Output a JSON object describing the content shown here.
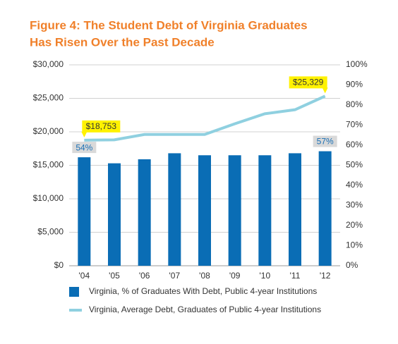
{
  "chart_data": {
    "type": "bar-line",
    "title": [
      "Figure 4: The Student Debt of Virginia Graduates",
      "Has Risen Over the Past Decade"
    ],
    "categories": [
      "'04",
      "'05",
      "'06",
      "'07",
      "'08",
      "'09",
      "'10",
      "'11",
      "'12"
    ],
    "series": [
      {
        "name": "Virginia, % of Graduates With Debt, Public 4-year Institutions",
        "type": "bar",
        "axis": "y2",
        "color": "#0a6db5",
        "values": [
          54,
          51,
          53,
          56,
          55,
          55,
          55,
          56,
          57
        ],
        "value_labels": [
          "54%",
          null,
          null,
          null,
          null,
          null,
          null,
          null,
          "57%"
        ]
      },
      {
        "name": "Virginia, Average Debt, Graduates of Public 4-year Institutions",
        "type": "line",
        "color": "#8fd0e0",
        "values": [
          18753,
          18800,
          19600,
          19600,
          19600,
          21200,
          22700,
          23300,
          25329
        ],
        "value_labels": [
          "$18,753",
          null,
          null,
          null,
          null,
          null,
          null,
          null,
          "$25,329"
        ]
      }
    ],
    "ylim": [
      0,
      30000
    ],
    "yticks": [
      {
        "value": 0,
        "label": "$0"
      },
      {
        "value": 5000,
        "label": "$5,000"
      },
      {
        "value": 10000,
        "label": "$10,000"
      },
      {
        "value": 15000,
        "label": "$15,000"
      },
      {
        "value": 20000,
        "label": "$20,000"
      },
      {
        "value": 25000,
        "label": "$25,000"
      },
      {
        "value": 30000,
        "label": "$30,000"
      }
    ],
    "y2lim": [
      0,
      100
    ],
    "y2ticks": [
      {
        "value": 0,
        "label": "0%"
      },
      {
        "value": 10,
        "label": "10%"
      },
      {
        "value": 20,
        "label": "20%"
      },
      {
        "value": 30,
        "label": "30%"
      },
      {
        "value": 40,
        "label": "40%"
      },
      {
        "value": 50,
        "label": "50%"
      },
      {
        "value": 60,
        "label": "60%"
      },
      {
        "value": 70,
        "label": "70%"
      },
      {
        "value": 80,
        "label": "80%"
      },
      {
        "value": 90,
        "label": "90%"
      },
      {
        "value": 100,
        "label": "100%"
      }
    ],
    "grid": true
  }
}
